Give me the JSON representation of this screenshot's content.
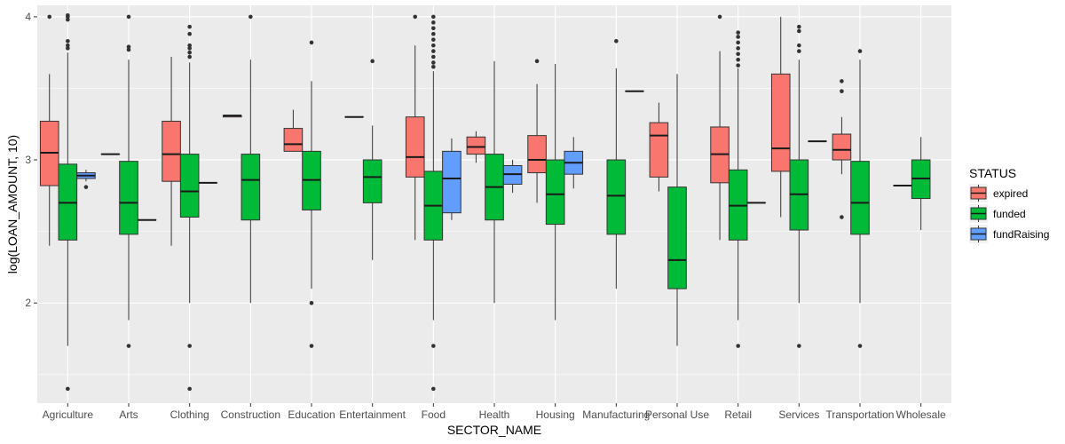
{
  "chart_data": {
    "type": "boxplot",
    "xlabel": "SECTOR_NAME",
    "ylabel": "log(LOAN_AMOUNT, 10)",
    "ylim": [
      1.3,
      4.08
    ],
    "yticks": [
      2,
      3,
      4
    ],
    "ytick_labels": [
      "2",
      "3",
      "4"
    ],
    "grid": true,
    "legend": {
      "title": "STATUS",
      "placement": "right",
      "entries": [
        {
          "name": "expired",
          "color": "#F8766D"
        },
        {
          "name": "funded",
          "color": "#00BA38"
        },
        {
          "name": "fundRaising",
          "color": "#619CFF"
        }
      ]
    },
    "categories": [
      "Agriculture",
      "Arts",
      "Clothing",
      "Construction",
      "Education",
      "Entertainment",
      "Food",
      "Health",
      "Housing",
      "Manufacturing",
      "Personal Use",
      "Retail",
      "Services",
      "Transportation",
      "Wholesale"
    ],
    "groups": [
      {
        "sector": "Agriculture",
        "status": "expired",
        "q1": 2.82,
        "median": 3.05,
        "q3": 3.27,
        "lower": 2.4,
        "upper": 3.6,
        "outliers": [
          4.0
        ]
      },
      {
        "sector": "Agriculture",
        "status": "funded",
        "q1": 2.44,
        "median": 2.7,
        "q3": 2.97,
        "lower": 1.7,
        "upper": 3.75,
        "outliers": [
          3.78,
          3.8,
          3.83,
          3.98,
          4.0,
          4.01,
          1.4
        ]
      },
      {
        "sector": "Agriculture",
        "status": "fundRaising",
        "q1": 2.87,
        "median": 2.89,
        "q3": 2.91,
        "lower": 2.85,
        "upper": 2.93,
        "outliers": [
          2.81
        ]
      },
      {
        "sector": "Arts",
        "status": "expired",
        "q1": 3.04,
        "median": 3.04,
        "q3": 3.04,
        "lower": 3.04,
        "upper": 3.04,
        "outliers": []
      },
      {
        "sector": "Arts",
        "status": "funded",
        "q1": 2.48,
        "median": 2.7,
        "q3": 2.99,
        "lower": 1.88,
        "upper": 3.7,
        "outliers": [
          3.77,
          3.79,
          4.0,
          1.7
        ]
      },
      {
        "sector": "Arts",
        "status": "fundRaising",
        "q1": 2.58,
        "median": 2.58,
        "q3": 2.58,
        "lower": 2.58,
        "upper": 2.58,
        "outliers": []
      },
      {
        "sector": "Clothing",
        "status": "expired",
        "q1": 2.85,
        "median": 3.04,
        "q3": 3.27,
        "lower": 2.4,
        "upper": 3.72,
        "outliers": []
      },
      {
        "sector": "Clothing",
        "status": "funded",
        "q1": 2.6,
        "median": 2.78,
        "q3": 3.04,
        "lower": 2.0,
        "upper": 3.68,
        "outliers": [
          3.72,
          3.75,
          3.78,
          3.8,
          3.88,
          3.93,
          1.7,
          1.4
        ]
      },
      {
        "sector": "Clothing",
        "status": "fundRaising",
        "q1": 2.84,
        "median": 2.84,
        "q3": 2.84,
        "lower": 2.84,
        "upper": 2.84,
        "outliers": []
      },
      {
        "sector": "Construction",
        "status": "expired",
        "q1": 3.3,
        "median": 3.31,
        "q3": 3.31,
        "lower": 3.3,
        "upper": 3.31,
        "outliers": []
      },
      {
        "sector": "Construction",
        "status": "funded",
        "q1": 2.58,
        "median": 2.86,
        "q3": 3.04,
        "lower": 2.0,
        "upper": 3.7,
        "outliers": [
          4.0
        ]
      },
      {
        "sector": "Education",
        "status": "expired",
        "q1": 3.06,
        "median": 3.11,
        "q3": 3.22,
        "lower": 3.06,
        "upper": 3.35,
        "outliers": []
      },
      {
        "sector": "Education",
        "status": "funded",
        "q1": 2.65,
        "median": 2.86,
        "q3": 3.06,
        "lower": 2.1,
        "upper": 3.55,
        "outliers": [
          3.82,
          2.0,
          1.7
        ]
      },
      {
        "sector": "Entertainment",
        "status": "expired",
        "q1": 3.3,
        "median": 3.3,
        "q3": 3.3,
        "lower": 3.3,
        "upper": 3.3,
        "outliers": []
      },
      {
        "sector": "Entertainment",
        "status": "funded",
        "q1": 2.7,
        "median": 2.88,
        "q3": 3.0,
        "lower": 2.3,
        "upper": 3.24,
        "outliers": [
          3.69
        ]
      },
      {
        "sector": "Food",
        "status": "expired",
        "q1": 2.88,
        "median": 3.02,
        "q3": 3.3,
        "lower": 2.44,
        "upper": 3.8,
        "outliers": [
          4.0
        ]
      },
      {
        "sector": "Food",
        "status": "funded",
        "q1": 2.44,
        "median": 2.68,
        "q3": 2.92,
        "lower": 1.88,
        "upper": 3.62,
        "outliers": [
          3.65,
          3.68,
          3.72,
          3.76,
          3.8,
          3.84,
          3.88,
          3.92,
          3.96,
          4.0,
          1.7,
          1.4
        ]
      },
      {
        "sector": "Food",
        "status": "fundRaising",
        "q1": 2.63,
        "median": 2.87,
        "q3": 3.06,
        "lower": 2.58,
        "upper": 3.15,
        "outliers": []
      },
      {
        "sector": "Health",
        "status": "expired",
        "q1": 3.04,
        "median": 3.09,
        "q3": 3.16,
        "lower": 2.98,
        "upper": 3.2,
        "outliers": []
      },
      {
        "sector": "Health",
        "status": "funded",
        "q1": 2.58,
        "median": 2.81,
        "q3": 3.04,
        "lower": 2.0,
        "upper": 3.69,
        "outliers": []
      },
      {
        "sector": "Health",
        "status": "fundRaising",
        "q1": 2.83,
        "median": 2.9,
        "q3": 2.96,
        "lower": 2.77,
        "upper": 3.0,
        "outliers": []
      },
      {
        "sector": "Housing",
        "status": "expired",
        "q1": 2.91,
        "median": 3.0,
        "q3": 3.17,
        "lower": 2.7,
        "upper": 3.53,
        "outliers": [
          3.69
        ]
      },
      {
        "sector": "Housing",
        "status": "funded",
        "q1": 2.55,
        "median": 2.76,
        "q3": 3.0,
        "lower": 1.88,
        "upper": 3.67,
        "outliers": []
      },
      {
        "sector": "Housing",
        "status": "fundRaising",
        "q1": 2.9,
        "median": 2.98,
        "q3": 3.06,
        "lower": 2.8,
        "upper": 3.16,
        "outliers": []
      },
      {
        "sector": "Manufacturing",
        "status": "funded",
        "q1": 2.48,
        "median": 2.75,
        "q3": 3.0,
        "lower": 2.1,
        "upper": 3.64,
        "outliers": [
          3.83
        ]
      },
      {
        "sector": "Manufacturing",
        "status": "fundRaising",
        "q1": 3.48,
        "median": 3.48,
        "q3": 3.48,
        "lower": 3.48,
        "upper": 3.48,
        "outliers": []
      },
      {
        "sector": "Personal Use",
        "status": "expired",
        "q1": 2.88,
        "median": 3.17,
        "q3": 3.26,
        "lower": 2.78,
        "upper": 3.4,
        "outliers": []
      },
      {
        "sector": "Personal Use",
        "status": "funded",
        "q1": 2.1,
        "median": 2.3,
        "q3": 2.81,
        "lower": 1.7,
        "upper": 3.6,
        "outliers": []
      },
      {
        "sector": "Retail",
        "status": "expired",
        "q1": 2.84,
        "median": 3.04,
        "q3": 3.23,
        "lower": 2.44,
        "upper": 3.76,
        "outliers": [
          4.0
        ]
      },
      {
        "sector": "Retail",
        "status": "funded",
        "q1": 2.44,
        "median": 2.68,
        "q3": 2.93,
        "lower": 1.88,
        "upper": 3.64,
        "outliers": [
          3.66,
          3.7,
          3.74,
          3.78,
          3.82,
          3.86,
          3.89,
          1.7
        ]
      },
      {
        "sector": "Retail",
        "status": "fundRaising",
        "q1": 2.7,
        "median": 2.7,
        "q3": 2.7,
        "lower": 2.7,
        "upper": 2.7,
        "outliers": []
      },
      {
        "sector": "Services",
        "status": "expired",
        "q1": 2.92,
        "median": 3.08,
        "q3": 3.6,
        "lower": 2.6,
        "upper": 4.0,
        "outliers": []
      },
      {
        "sector": "Services",
        "status": "funded",
        "q1": 2.51,
        "median": 2.76,
        "q3": 3.0,
        "lower": 2.0,
        "upper": 3.7,
        "outliers": [
          3.76,
          3.8,
          3.9,
          3.93,
          1.7
        ]
      },
      {
        "sector": "Services",
        "status": "fundRaising",
        "q1": 3.13,
        "median": 3.13,
        "q3": 3.13,
        "lower": 3.13,
        "upper": 3.13,
        "outliers": []
      },
      {
        "sector": "Transportation",
        "status": "expired",
        "q1": 3.0,
        "median": 3.07,
        "q3": 3.18,
        "lower": 2.9,
        "upper": 3.3,
        "outliers": [
          3.48,
          3.55,
          2.6
        ]
      },
      {
        "sector": "Transportation",
        "status": "funded",
        "q1": 2.48,
        "median": 2.7,
        "q3": 2.99,
        "lower": 2.0,
        "upper": 3.7,
        "outliers": [
          3.76,
          1.7
        ]
      },
      {
        "sector": "Wholesale",
        "status": "expired",
        "q1": 2.82,
        "median": 2.82,
        "q3": 2.82,
        "lower": 2.82,
        "upper": 2.82,
        "outliers": []
      },
      {
        "sector": "Wholesale",
        "status": "funded",
        "q1": 2.73,
        "median": 2.87,
        "q3": 3.0,
        "lower": 2.51,
        "upper": 3.16,
        "outliers": []
      }
    ]
  }
}
